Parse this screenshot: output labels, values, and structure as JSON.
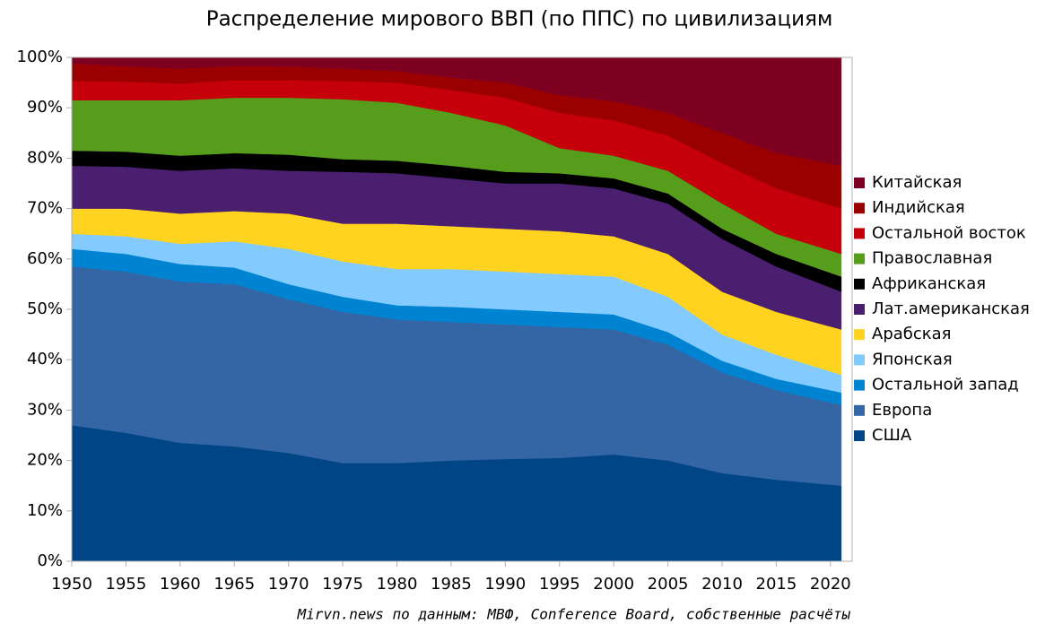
{
  "chart_data": {
    "type": "stacked_area",
    "title": "Распределение мирового ВВП (по ППС) по цивилизациям",
    "source": "Mirvn.news по данным: МВФ, Conference Board, собственные расчёты",
    "x": [
      1950,
      1955,
      1960,
      1965,
      1970,
      1975,
      1980,
      1985,
      1990,
      1995,
      2000,
      2005,
      2010,
      2015,
      2021
    ],
    "xlim": [
      1950,
      2022
    ],
    "xticks": [
      1950,
      1955,
      1960,
      1965,
      1970,
      1975,
      1980,
      1985,
      1990,
      1995,
      2000,
      2005,
      2010,
      2015,
      2020
    ],
    "ylim": [
      0,
      100
    ],
    "yticks": [
      {
        "value": 0,
        "label": "0%"
      },
      {
        "value": 10,
        "label": "10%"
      },
      {
        "value": 20,
        "label": "20%"
      },
      {
        "value": 30,
        "label": "30%"
      },
      {
        "value": 40,
        "label": "40%"
      },
      {
        "value": 50,
        "label": "50%"
      },
      {
        "value": 60,
        "label": "60%"
      },
      {
        "value": 70,
        "label": "70%"
      },
      {
        "value": 80,
        "label": "80%"
      },
      {
        "value": 90,
        "label": "90%"
      },
      {
        "value": 100,
        "label": "100%"
      }
    ],
    "series": [
      {
        "name": "США",
        "color": "#004586",
        "values": [
          27,
          25.5,
          23.5,
          22.8,
          21.5,
          19.5,
          19.5,
          20,
          20.3,
          20.5,
          21.2,
          20,
          17.5,
          16.2,
          15
        ]
      },
      {
        "name": "Европа",
        "color": "#3465a4",
        "values": [
          31.5,
          32,
          32,
          32.2,
          30.5,
          30,
          28.5,
          27.5,
          26.7,
          26,
          24.8,
          23,
          20,
          17.8,
          16
        ]
      },
      {
        "name": "Остальной запад",
        "color": "#0084d1",
        "values": [
          3.5,
          3.5,
          3.5,
          3.3,
          3,
          3,
          2.8,
          3,
          3,
          3,
          3,
          2.5,
          2.3,
          2.2,
          2.5
        ]
      },
      {
        "name": "Японская",
        "color": "#83caff",
        "values": [
          3,
          3.5,
          4,
          5.2,
          7,
          7,
          7.2,
          7.5,
          7.5,
          7.5,
          7.5,
          7,
          5.2,
          4.8,
          3.5
        ]
      },
      {
        "name": "Арабская",
        "color": "#ffd320",
        "values": [
          5,
          5.5,
          6,
          6,
          7,
          7.5,
          9,
          8.5,
          8.5,
          8.5,
          8,
          8.5,
          8.5,
          8.5,
          9
        ]
      },
      {
        "name": "Лат.американская",
        "color": "#4b1f6f",
        "values": [
          8.5,
          8.3,
          8.5,
          8.5,
          8.5,
          10.3,
          10,
          9.5,
          9,
          9.5,
          9.5,
          10,
          10.5,
          9,
          7.5
        ]
      },
      {
        "name": "Африканская",
        "color": "#000000",
        "values": [
          3,
          3,
          3,
          3,
          3.2,
          2.5,
          2.5,
          2.5,
          2.3,
          2,
          2,
          2,
          2,
          2.5,
          3
        ]
      },
      {
        "name": "Православная",
        "color": "#579d1c",
        "values": [
          10,
          10.2,
          11,
          11,
          11.3,
          11.9,
          11.5,
          10.5,
          9.2,
          5,
          4.5,
          4.5,
          5,
          4,
          4.5
        ]
      },
      {
        "name": "Остальной восток",
        "color": "#c5000b",
        "values": [
          3.8,
          3.7,
          3.3,
          3.5,
          3.5,
          3.6,
          4,
          4.5,
          5.5,
          7,
          7,
          7,
          8,
          9,
          9
        ]
      },
      {
        "name": "Индийская",
        "color": "#9b0000",
        "values": [
          3.5,
          3,
          3,
          2.8,
          2.7,
          2.5,
          2.3,
          2.5,
          3,
          3.5,
          3.8,
          4.5,
          6,
          7,
          8.5
        ]
      },
      {
        "name": "Китайская",
        "color": "#7e0021",
        "values": [
          1.2,
          1.8,
          2.2,
          1.7,
          1.8,
          2.2,
          2.7,
          4,
          5,
          7.5,
          8.7,
          11,
          15,
          19,
          21.5
        ]
      }
    ]
  }
}
